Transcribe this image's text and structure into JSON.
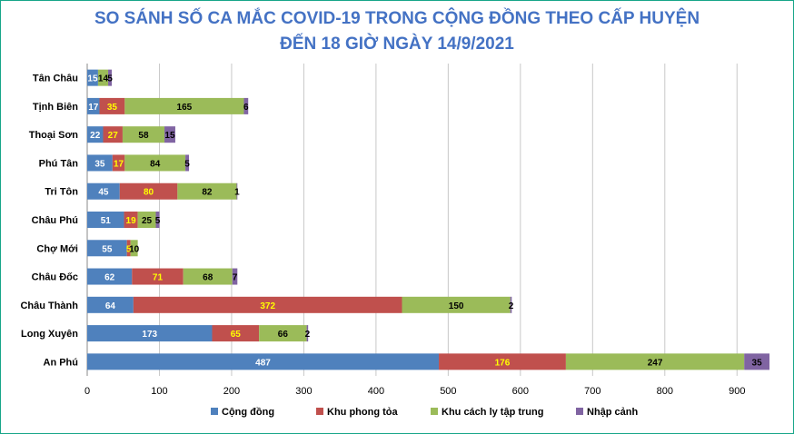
{
  "chart_data": {
    "type": "bar",
    "orientation": "horizontal",
    "stacked": true,
    "title": "SO SÁNH SỐ CA MẮC COVID-19 TRONG CỘNG ĐỒNG THEO CẤP HUYỆN",
    "subtitle": "ĐẾN 18 GIỜ NGÀY 14/9/2021",
    "categories": [
      "Tân Châu",
      "Tịnh Biên",
      "Thoại Sơn",
      "Phú Tân",
      "Tri Tôn",
      "Châu Phú",
      "Chợ Mới",
      "Châu Đốc",
      "Châu Thành",
      "Long Xuyên",
      "An Phú"
    ],
    "series": [
      {
        "name": "Cộng đồng",
        "color": "#4f81bd",
        "label_color": "#ffffff",
        "values": [
          15,
          17,
          22,
          35,
          45,
          51,
          55,
          62,
          64,
          173,
          487
        ],
        "labels": [
          "15",
          "17",
          "22",
          "35",
          "45",
          "51",
          "55",
          "62",
          "64",
          "173",
          "487"
        ]
      },
      {
        "name": "Khu phong tỏa",
        "color": "#c0504d",
        "label_color": "#ffff00",
        "values": [
          0,
          35,
          27,
          17,
          80,
          19,
          5,
          71,
          372,
          65,
          176
        ],
        "labels": [
          "",
          "35",
          "27",
          "17",
          "80",
          "19",
          "5",
          "71",
          "372",
          "65",
          "176"
        ]
      },
      {
        "name": "Khu cách ly tập trung",
        "color": "#9bbb59",
        "label_color": "#000000",
        "values": [
          14,
          165,
          58,
          84,
          82,
          25,
          10,
          68,
          150,
          66,
          247
        ],
        "labels": [
          "14",
          "165",
          "58",
          "84",
          "82",
          "25",
          "10",
          "68",
          "150",
          "66",
          "247"
        ]
      },
      {
        "name": "Nhập cảnh",
        "color": "#8064a2",
        "label_color": "#000000",
        "values": [
          5,
          6,
          15,
          5,
          1,
          5,
          0,
          7,
          2,
          2,
          35
        ],
        "labels": [
          "5",
          "6",
          "15",
          "5",
          "1",
          "5",
          "",
          "7",
          "2",
          "2",
          "35"
        ]
      }
    ],
    "x_ticks": [
      "0",
      "100",
      "200",
      "300",
      "400",
      "500",
      "600",
      "700",
      "800",
      "900"
    ],
    "xlim": [
      0,
      950
    ],
    "grid": true,
    "legend_position": "bottom"
  }
}
